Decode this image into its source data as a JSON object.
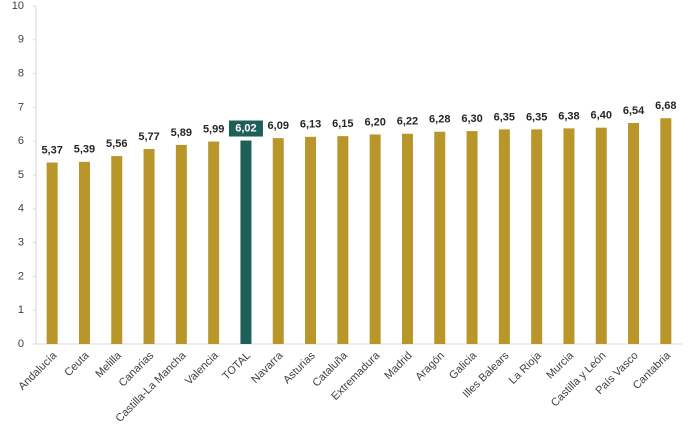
{
  "chart_data": {
    "type": "bar",
    "categories": [
      "Andalucía",
      "Ceuta",
      "Melilla",
      "Canarias",
      "Castilla-La Mancha",
      "Valencia",
      "TOTAL",
      "Navarra",
      "Asturias",
      "Cataluña",
      "Extremadura",
      "Madrid",
      "Aragón",
      "Galicia",
      "Illes Balears",
      "La Rioja",
      "Murcia",
      "Castilla y León",
      "País Vasco",
      "Cantabria"
    ],
    "values": [
      5.37,
      5.39,
      5.56,
      5.77,
      5.89,
      5.99,
      6.02,
      6.09,
      6.13,
      6.15,
      6.2,
      6.22,
      6.28,
      6.3,
      6.35,
      6.35,
      6.38,
      6.4,
      6.54,
      6.68
    ],
    "value_labels": [
      "5,37",
      "5,39",
      "5,56",
      "5,77",
      "5,89",
      "5,99",
      "6,02",
      "6,09",
      "6,13",
      "6,15",
      "6,20",
      "6,22",
      "6,28",
      "6,30",
      "6,35",
      "6,35",
      "6,38",
      "6,40",
      "6,54",
      "6,68"
    ],
    "colors": [
      "#b8962a",
      "#b8962a",
      "#b8962a",
      "#b8962a",
      "#b8962a",
      "#b8962a",
      "#1e5f5a",
      "#b8962a",
      "#b8962a",
      "#b8962a",
      "#b8962a",
      "#b8962a",
      "#b8962a",
      "#b8962a",
      "#b8962a",
      "#b8962a",
      "#b8962a",
      "#b8962a",
      "#b8962a",
      "#b8962a"
    ],
    "ylim": [
      0,
      10
    ],
    "yticks": [
      0,
      1,
      2,
      3,
      4,
      5,
      6,
      7,
      8,
      9,
      10
    ],
    "grid": false
  }
}
